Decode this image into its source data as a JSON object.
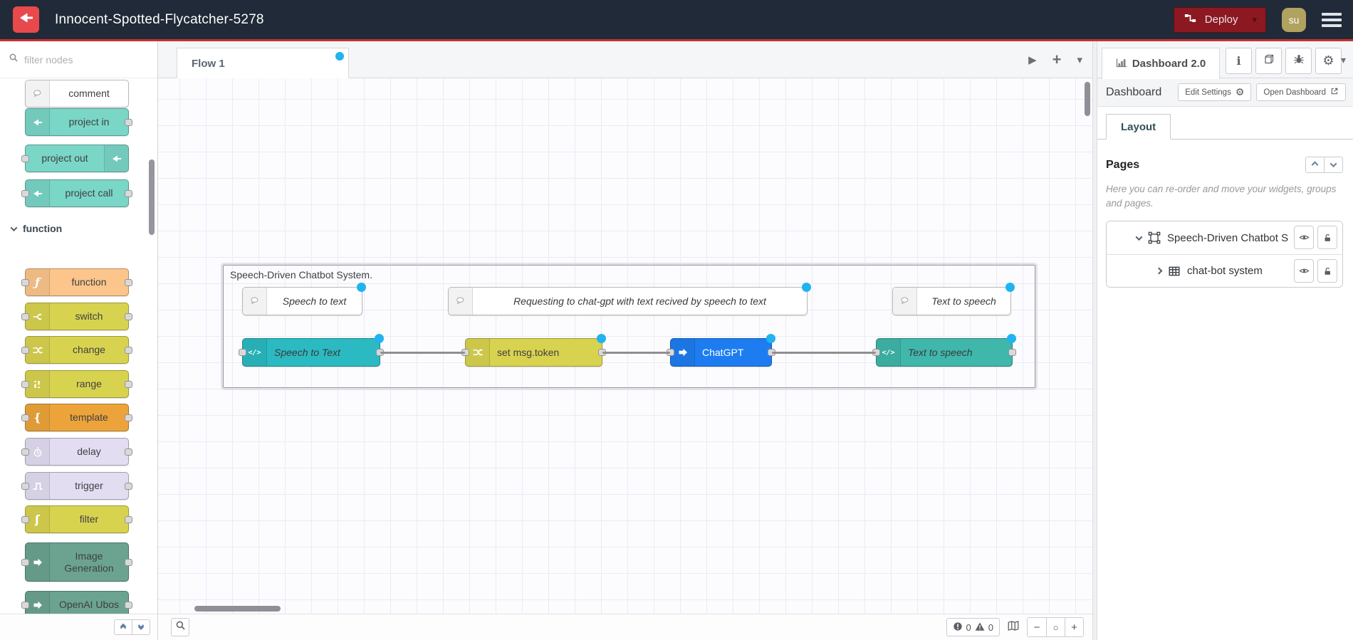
{
  "colors": {
    "accent_red": "#cb2f2f",
    "header_bg": "#202a38",
    "deploy_bg": "#8c1822",
    "avatar_bg": "#b0a25f",
    "logo_red": "#e8494c",
    "node_teal": "#7ad6c7",
    "node_function": "#fbc58c",
    "node_yellow": "#d8d34f",
    "node_template": "#eca43a",
    "node_lavender": "#e2ddf1",
    "node_green": "#6ba390",
    "node_cyan": "#2bbac1",
    "node_seagreen": "#3fb7aa",
    "node_blue": "#1d7df0",
    "node_white": "#ffffff",
    "change_dot": "#1fb3f0",
    "wire": "#8f8f8f"
  },
  "header": {
    "title": "Innocent-Spotted-Flycatcher-5278",
    "deploy_label": "Deploy",
    "avatar_initials": "su"
  },
  "palette": {
    "filter_placeholder": "filter nodes",
    "items": [
      {
        "id": "comment",
        "label": "comment",
        "color": "node_white",
        "icon": "comment-icon",
        "icon_side": "left",
        "ports": []
      },
      {
        "id": "project-in",
        "label": "project in",
        "color": "node_teal",
        "icon": "project-icon",
        "icon_side": "left",
        "ports": [
          "right"
        ]
      },
      {
        "id": "project-out",
        "label": "project out",
        "color": "node_teal",
        "icon": "project-icon",
        "icon_side": "right",
        "ports": [
          "left"
        ]
      },
      {
        "id": "project-call",
        "label": "project call",
        "color": "node_teal",
        "icon": "project-icon",
        "icon_side": "left",
        "ports": [
          "left",
          "right"
        ]
      },
      {
        "id": "category-function",
        "category": "function"
      },
      {
        "id": "function",
        "label": "function",
        "color": "node_function",
        "icon": "function-icon",
        "icon_side": "left",
        "ports": [
          "left",
          "right"
        ]
      },
      {
        "id": "switch",
        "label": "switch",
        "color": "node_yellow",
        "icon": "switch-icon",
        "icon_side": "left",
        "ports": [
          "left",
          "right"
        ]
      },
      {
        "id": "change",
        "label": "change",
        "color": "node_yellow",
        "icon": "change-icon",
        "icon_side": "left",
        "ports": [
          "left",
          "right"
        ]
      },
      {
        "id": "range",
        "label": "range",
        "color": "node_yellow",
        "icon": "range-icon",
        "icon_side": "left",
        "ports": [
          "left",
          "right"
        ]
      },
      {
        "id": "template",
        "label": "template",
        "color": "node_template",
        "icon": "template-icon",
        "icon_side": "left",
        "ports": [
          "left",
          "right"
        ]
      },
      {
        "id": "delay",
        "label": "delay",
        "color": "node_lavender",
        "icon": "delay-icon",
        "icon_side": "left",
        "ports": [
          "left",
          "right"
        ]
      },
      {
        "id": "trigger",
        "label": "trigger",
        "color": "node_lavender",
        "icon": "trigger-icon",
        "icon_side": "left",
        "ports": [
          "left",
          "right"
        ]
      },
      {
        "id": "filter",
        "label": "filter",
        "color": "node_yellow",
        "icon": "filter-icon",
        "icon_side": "left",
        "ports": [
          "left",
          "right"
        ]
      },
      {
        "id": "image-generation",
        "label": "Image\nGeneration",
        "color": "node_green",
        "icon": "arrow-icon",
        "icon_side": "left",
        "ports": [
          "left",
          "right"
        ],
        "two_line": true
      },
      {
        "id": "openai-ubos",
        "label": "OpenAI Ubos",
        "color": "node_green",
        "icon": "arrow-icon",
        "icon_side": "left",
        "ports": [
          "left",
          "right"
        ]
      }
    ]
  },
  "workspace": {
    "tab_label": "Flow 1",
    "group_label": "Speech-Driven Chatbot System.",
    "comments": [
      {
        "id": "comment-speech-to-text",
        "label": "Speech to text"
      },
      {
        "id": "comment-requesting",
        "label": "Requesting to chat-gpt with text recived by speech to text"
      },
      {
        "id": "comment-text-to-speech",
        "label": "Text to speech"
      }
    ],
    "nodes": [
      {
        "id": "speech-to-text-node",
        "label": "Speech to Text",
        "color": "node_cyan",
        "icon": "code-icon",
        "italic": true
      },
      {
        "id": "set-msg-token-node",
        "label": "set msg.token",
        "color": "node_yellow",
        "icon": "change-icon"
      },
      {
        "id": "chatgpt-node",
        "label": "ChatGPT",
        "color": "node_blue",
        "icon": "arrow-icon",
        "light_text": true
      },
      {
        "id": "text-to-speech-node",
        "label": "Text to speech",
        "color": "node_seagreen",
        "icon": "code-icon",
        "italic": true
      }
    ],
    "footer": {
      "error_count": "0",
      "warning_count": "0"
    }
  },
  "sidebar": {
    "active_tab": "Dashboard 2.0",
    "tool_tabs": [
      {
        "name": "info-tab",
        "icon": "info-icon"
      },
      {
        "name": "docs-tab",
        "icon": "book-icon"
      },
      {
        "name": "debug-tab",
        "icon": "bug-icon"
      },
      {
        "name": "config-tab",
        "icon": "gear-icon"
      }
    ],
    "dashboard": {
      "label": "Dashboard",
      "edit_settings_label": "Edit Settings",
      "open_dashboard_label": "Open Dashboard"
    },
    "layout_tab": "Layout",
    "pages": {
      "heading": "Pages",
      "description": "Here you can re-order and move your widgets, groups and pages.",
      "tree": [
        {
          "id": "page-speech-driven-chatbot",
          "label": "Speech-Driven Chatbot S",
          "level": 0,
          "expanded": true,
          "icon": "group-icon"
        },
        {
          "id": "group-chat-bot-system",
          "label": "chat-bot system",
          "level": 1,
          "expanded": false,
          "icon": "table-icon"
        }
      ]
    }
  }
}
